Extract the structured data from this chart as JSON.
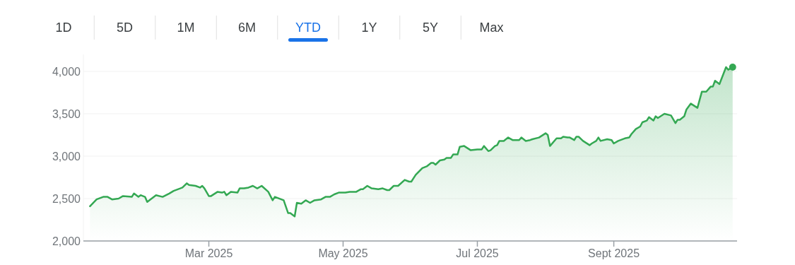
{
  "chart_data": {
    "type": "area",
    "annotations": [
      "1D",
      "5D",
      "1M",
      "6M",
      "YTD",
      "1Y",
      "5Y",
      "Max"
    ],
    "x": [
      "2025-01-06",
      "2025-01-09",
      "2025-01-12",
      "2025-01-14",
      "2025-01-16",
      "2025-01-19",
      "2025-01-21",
      "2025-01-25",
      "2025-01-26",
      "2025-01-28",
      "2025-01-29",
      "2025-01-31",
      "2025-02-01",
      "2025-02-05",
      "2025-02-08",
      "2025-02-11",
      "2025-02-13",
      "2025-02-17",
      "2025-02-19",
      "2025-02-20",
      "2025-02-23",
      "2025-02-25",
      "2025-02-26",
      "2025-02-27",
      "2025-03-01",
      "2025-03-02",
      "2025-03-05",
      "2025-03-07",
      "2025-03-08",
      "2025-03-09",
      "2025-03-11",
      "2025-03-14",
      "2025-03-15",
      "2025-03-17",
      "2025-03-19",
      "2025-03-21",
      "2025-03-23",
      "2025-03-25",
      "2025-03-28",
      "2025-03-30",
      "2025-03-31",
      "2025-04-04",
      "2025-04-06",
      "2025-04-07",
      "2025-04-09",
      "2025-04-10",
      "2025-04-12",
      "2025-04-14",
      "2025-04-16",
      "2025-04-18",
      "2025-04-21",
      "2025-04-23",
      "2025-04-25",
      "2025-04-27",
      "2025-04-29",
      "2025-05-02",
      "2025-05-04",
      "2025-05-07",
      "2025-05-09",
      "2025-05-10",
      "2025-05-12",
      "2025-05-14",
      "2025-05-17",
      "2025-05-19",
      "2025-05-21",
      "2025-05-22",
      "2025-05-24",
      "2025-05-26",
      "2025-05-29",
      "2025-05-31",
      "2025-06-01",
      "2025-06-03",
      "2025-06-06",
      "2025-06-08",
      "2025-06-10",
      "2025-06-11",
      "2025-06-12",
      "2025-06-14",
      "2025-06-16",
      "2025-06-17",
      "2025-06-19",
      "2025-06-20",
      "2025-06-22",
      "2025-06-23",
      "2025-06-25",
      "2025-06-28",
      "2025-07-01",
      "2025-07-03",
      "2025-07-04",
      "2025-07-06",
      "2025-07-07",
      "2025-07-09",
      "2025-07-10",
      "2025-07-11",
      "2025-07-13",
      "2025-07-15",
      "2025-07-17",
      "2025-07-20",
      "2025-07-21",
      "2025-07-23",
      "2025-07-25",
      "2025-07-26",
      "2025-07-29",
      "2025-08-01",
      "2025-08-02",
      "2025-08-03",
      "2025-08-06",
      "2025-08-08",
      "2025-08-09",
      "2025-08-11",
      "2025-08-12",
      "2025-08-14",
      "2025-08-15",
      "2025-08-16",
      "2025-08-18",
      "2025-08-21",
      "2025-08-22",
      "2025-08-24",
      "2025-08-25",
      "2025-08-26",
      "2025-08-29",
      "2025-08-31",
      "2025-09-01",
      "2025-09-03",
      "2025-09-06",
      "2025-09-08",
      "2025-09-09",
      "2025-09-11",
      "2025-09-13",
      "2025-09-14",
      "2025-09-16",
      "2025-09-17",
      "2025-09-19",
      "2025-09-20",
      "2025-09-21",
      "2025-09-24",
      "2025-09-27",
      "2025-09-29",
      "2025-09-30",
      "2025-10-01",
      "2025-10-03",
      "2025-10-04",
      "2025-10-06",
      "2025-10-09",
      "2025-10-11",
      "2025-10-13",
      "2025-10-15",
      "2025-10-16",
      "2025-10-17",
      "2025-10-19",
      "2025-10-22",
      "2025-10-23",
      "2025-10-25"
    ],
    "series": [
      {
        "color": "#34a853",
        "values": [
          2410,
          2490,
          2520,
          2520,
          2490,
          2500,
          2530,
          2520,
          2560,
          2520,
          2540,
          2520,
          2460,
          2540,
          2520,
          2560,
          2590,
          2630,
          2680,
          2660,
          2650,
          2630,
          2650,
          2620,
          2530,
          2530,
          2580,
          2570,
          2580,
          2540,
          2580,
          2570,
          2620,
          2620,
          2630,
          2650,
          2620,
          2650,
          2580,
          2480,
          2520,
          2480,
          2330,
          2330,
          2290,
          2450,
          2440,
          2480,
          2450,
          2480,
          2490,
          2520,
          2520,
          2550,
          2570,
          2570,
          2580,
          2580,
          2610,
          2610,
          2650,
          2620,
          2610,
          2620,
          2600,
          2600,
          2650,
          2650,
          2720,
          2700,
          2700,
          2780,
          2860,
          2880,
          2920,
          2920,
          2900,
          2950,
          2960,
          2980,
          2980,
          3020,
          3020,
          3110,
          3120,
          3070,
          3080,
          3080,
          3120,
          3060,
          3070,
          3120,
          3130,
          3180,
          3180,
          3220,
          3190,
          3190,
          3220,
          3180,
          3190,
          3200,
          3220,
          3270,
          3250,
          3120,
          3210,
          3210,
          3230,
          3220,
          3220,
          3190,
          3230,
          3230,
          3180,
          3130,
          3150,
          3180,
          3220,
          3180,
          3200,
          3190,
          3150,
          3180,
          3210,
          3220,
          3260,
          3320,
          3350,
          3400,
          3420,
          3460,
          3420,
          3470,
          3450,
          3500,
          3480,
          3390,
          3430,
          3430,
          3470,
          3550,
          3620,
          3570,
          3760,
          3760,
          3820,
          3820,
          3890,
          3850,
          4050,
          4020,
          4050
        ]
      }
    ],
    "xlim": [
      "2025-01-03",
      "2025-10-27"
    ],
    "xticks": [
      {
        "value": "2025-03-01",
        "label": "Mar 2025"
      },
      {
        "value": "2025-05-01",
        "label": "May 2025"
      },
      {
        "value": "2025-07-01",
        "label": "Jul 2025"
      },
      {
        "value": "2025-09-01",
        "label": "Sept 2025"
      }
    ],
    "ylim": [
      2000,
      4200
    ],
    "yticks": [
      {
        "value": 2000,
        "label": "2,000"
      },
      {
        "value": 2500,
        "label": "2,500"
      },
      {
        "value": 3000,
        "label": "3,000"
      },
      {
        "value": 3500,
        "label": "3,500"
      },
      {
        "value": 4000,
        "label": "4,000"
      }
    ],
    "grid": "y"
  }
}
